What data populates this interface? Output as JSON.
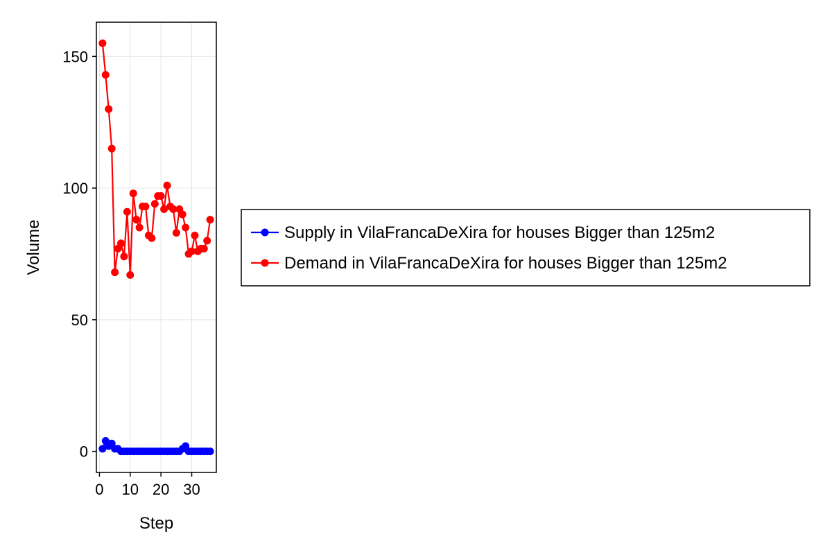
{
  "chart_data": {
    "type": "line",
    "title": "",
    "xlabel": "Step",
    "ylabel": "Volume",
    "xlim": [
      -1,
      38
    ],
    "ylim": [
      -8,
      163
    ],
    "xticks": [
      0,
      10,
      20,
      30
    ],
    "yticks": [
      0,
      50,
      100,
      150
    ],
    "grid": true,
    "legend_position": "right",
    "series": [
      {
        "name": "Supply in VilaFrancaDeXira for houses Bigger than 125m2",
        "color": "#0000ff",
        "x": [
          1,
          2,
          3,
          4,
          5,
          6,
          7,
          8,
          9,
          10,
          11,
          12,
          13,
          14,
          15,
          16,
          17,
          18,
          19,
          20,
          21,
          22,
          23,
          24,
          25,
          26,
          27,
          28,
          29,
          30,
          31,
          32,
          33,
          34,
          35,
          36
        ],
        "y": [
          1,
          4,
          2,
          3,
          1,
          1,
          0,
          0,
          0,
          0,
          0,
          0,
          0,
          0,
          0,
          0,
          0,
          0,
          0,
          0,
          0,
          0,
          0,
          0,
          0,
          0,
          1,
          2,
          0,
          0,
          0,
          0,
          0,
          0,
          0,
          0
        ]
      },
      {
        "name": "Demand in VilaFrancaDeXira for houses Bigger than 125m2",
        "color": "#ff0000",
        "x": [
          1,
          2,
          3,
          4,
          5,
          6,
          7,
          8,
          9,
          10,
          11,
          12,
          13,
          14,
          15,
          16,
          17,
          18,
          19,
          20,
          21,
          22,
          23,
          24,
          25,
          26,
          27,
          28,
          29,
          30,
          31,
          32,
          33,
          34,
          35,
          36
        ],
        "y": [
          155,
          143,
          130,
          115,
          68,
          77,
          79,
          74,
          91,
          67,
          98,
          88,
          85,
          93,
          93,
          82,
          81,
          94,
          97,
          97,
          92,
          101,
          93,
          92,
          83,
          92,
          90,
          85,
          75,
          76,
          82,
          76,
          77,
          77,
          80,
          88
        ]
      }
    ]
  }
}
